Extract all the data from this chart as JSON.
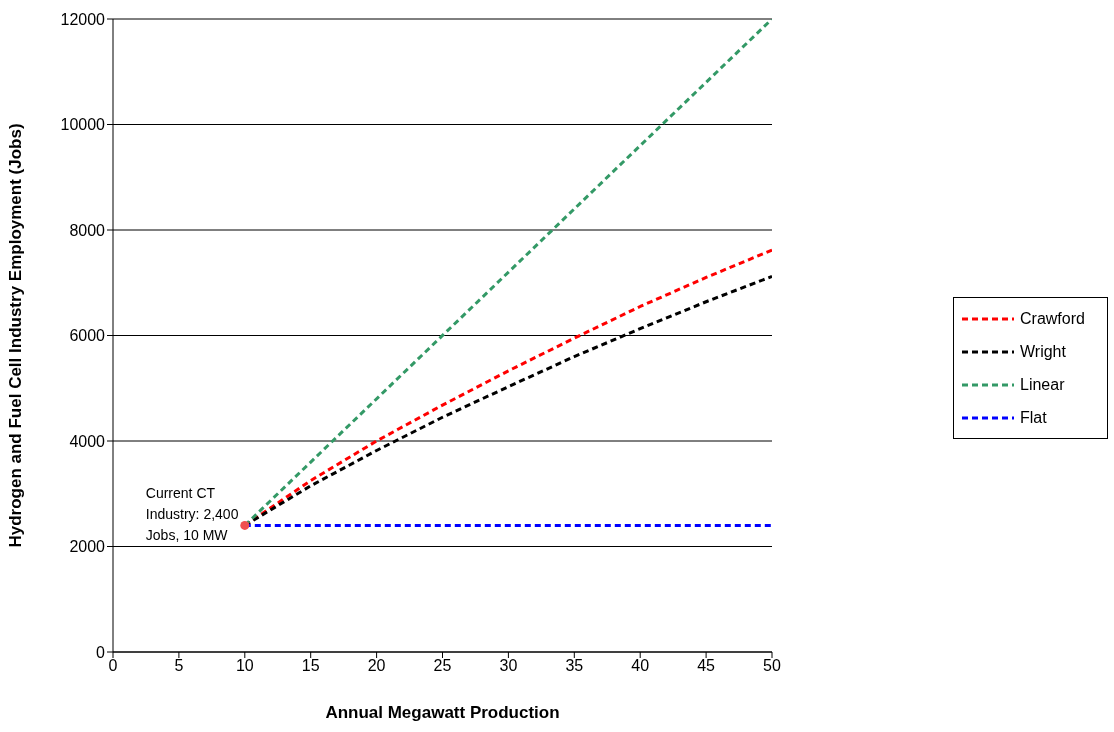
{
  "chart_data": {
    "type": "line",
    "xlabel": "Annual Megawatt Production",
    "ylabel": "Hydrogen and Fuel Cell Industry Employment (Jobs)",
    "xlim": [
      0,
      50
    ],
    "xticks": [
      0,
      5,
      10,
      15,
      20,
      25,
      30,
      35,
      40,
      45,
      50
    ],
    "ylim": [
      0,
      12000
    ],
    "yticks": [
      0,
      2000,
      4000,
      6000,
      8000,
      10000,
      12000
    ],
    "grid": "y",
    "legend": "right",
    "marker": "none",
    "line_style": "dashed",
    "series": [
      {
        "name": "Crawford",
        "color": "#ff0000",
        "x": [
          10,
          15,
          20,
          25,
          30,
          35,
          40,
          45,
          50
        ],
        "values": [
          2400,
          3250,
          4000,
          4680,
          5330,
          5950,
          6550,
          7100,
          7620
        ]
      },
      {
        "name": "Wright",
        "color": "#000000",
        "x": [
          10,
          15,
          20,
          25,
          30,
          35,
          40,
          45,
          50
        ],
        "values": [
          2400,
          3150,
          3820,
          4450,
          5030,
          5600,
          6130,
          6640,
          7120
        ]
      },
      {
        "name": "Linear",
        "color": "#339966",
        "x": [
          10,
          50
        ],
        "values": [
          2400,
          12000
        ]
      },
      {
        "name": "Flat",
        "color": "#0000ff",
        "x": [
          10,
          50
        ],
        "values": [
          2400,
          2400
        ]
      },
      {
        "type": "scatter",
        "color": "#f05050",
        "marker": "circle",
        "x": [
          10
        ],
        "values": [
          2400
        ]
      }
    ],
    "annotations": [
      {
        "text": "Current CT Industry: 2,400 Jobs, 10 MW",
        "x": 10,
        "y": 2400
      }
    ]
  }
}
